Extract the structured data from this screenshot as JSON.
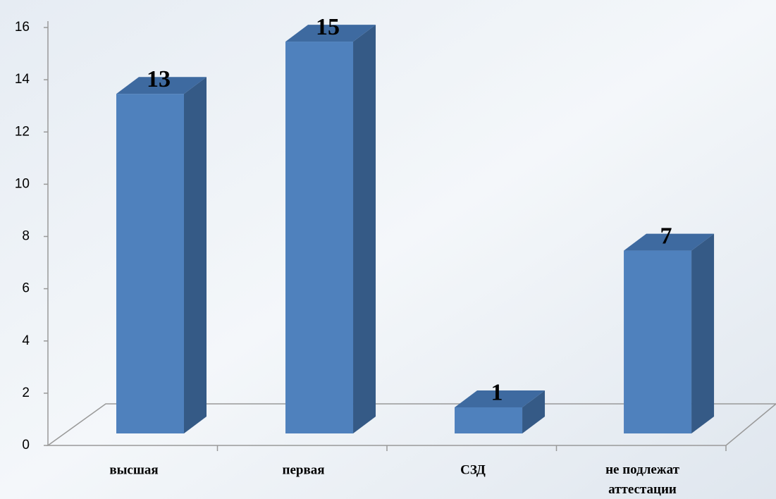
{
  "chart_data": {
    "type": "bar3d",
    "categories": [
      "высшая",
      "первая",
      "СЗД",
      "не подлежат аттестации"
    ],
    "values": [
      13,
      15,
      1,
      7
    ],
    "color": "#4f81bd",
    "ylim": [
      0,
      16
    ],
    "yticks": [
      0,
      2,
      4,
      6,
      8,
      10,
      12,
      14,
      16
    ]
  }
}
